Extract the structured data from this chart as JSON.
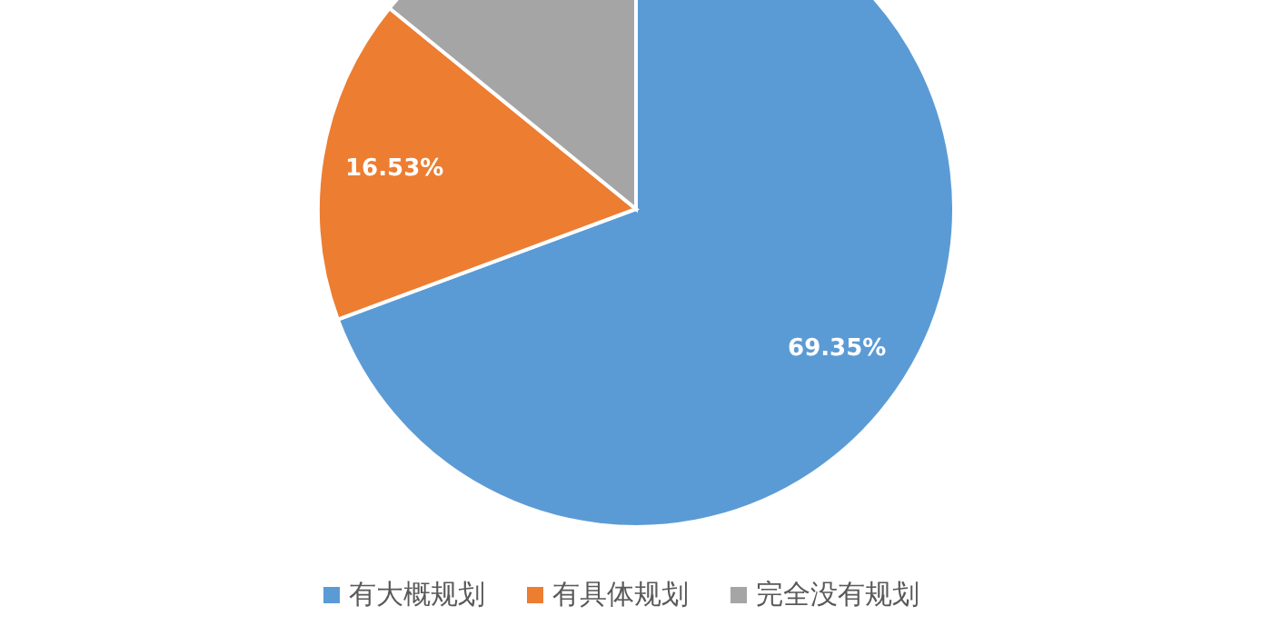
{
  "chart_data": {
    "type": "pie",
    "categories": [
      "有大概规划",
      "有具体规划",
      "完全没有规划"
    ],
    "values": [
      69.35,
      16.53,
      14.12
    ],
    "value_labels": [
      "69.35%",
      "16.53%",
      null
    ],
    "colors": [
      "#5b9bd5",
      "#ed7d31",
      "#a5a5a5"
    ],
    "legend": "bottom"
  }
}
